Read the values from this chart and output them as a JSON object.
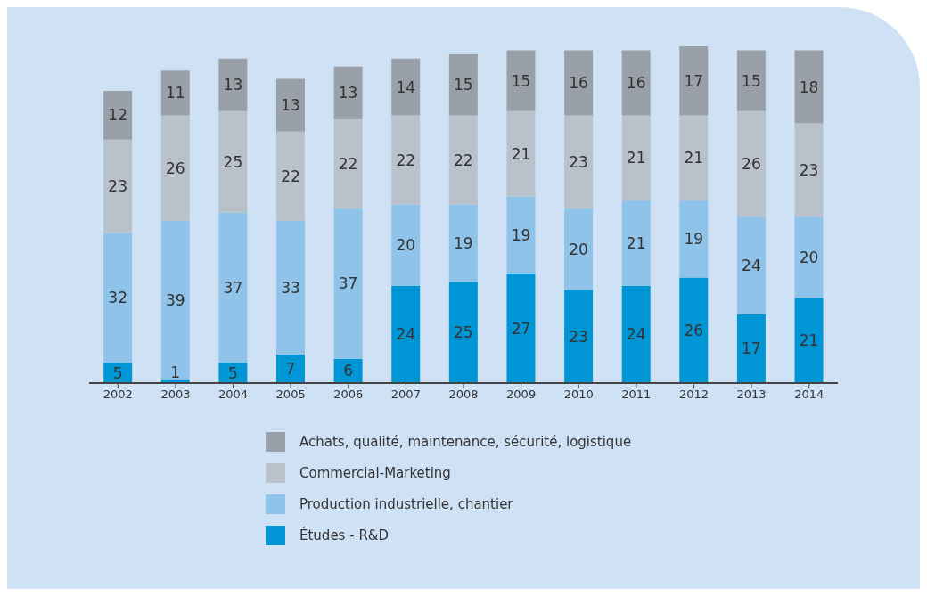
{
  "chart_data": {
    "type": "bar",
    "stacked": true,
    "data_labels": true,
    "legend": "bottom",
    "categories": [
      "2002",
      "2003",
      "2004",
      "2005",
      "2006",
      "2007",
      "2008",
      "2009",
      "2010",
      "2011",
      "2012",
      "2013",
      "2014"
    ],
    "series": [
      {
        "name": "Études - R&D",
        "color": "#0096d6",
        "values": [
          5,
          1,
          5,
          7,
          6,
          24,
          25,
          27,
          23,
          24,
          26,
          17,
          21
        ]
      },
      {
        "name": "Production industrielle, chantier",
        "color": "#8fc3ea",
        "values": [
          32,
          39,
          37,
          33,
          37,
          20,
          19,
          19,
          20,
          21,
          19,
          24,
          20
        ]
      },
      {
        "name": "Commercial-Marketing",
        "color": "#b9c1cb",
        "values": [
          23,
          26,
          25,
          22,
          22,
          22,
          22,
          21,
          23,
          21,
          21,
          26,
          23
        ]
      },
      {
        "name": "Achats, qualité, maintenance, sécurité, logistique",
        "color": "#99a0a8",
        "values": [
          12,
          11,
          13,
          13,
          13,
          14,
          15,
          15,
          16,
          16,
          17,
          15,
          18
        ]
      }
    ]
  }
}
